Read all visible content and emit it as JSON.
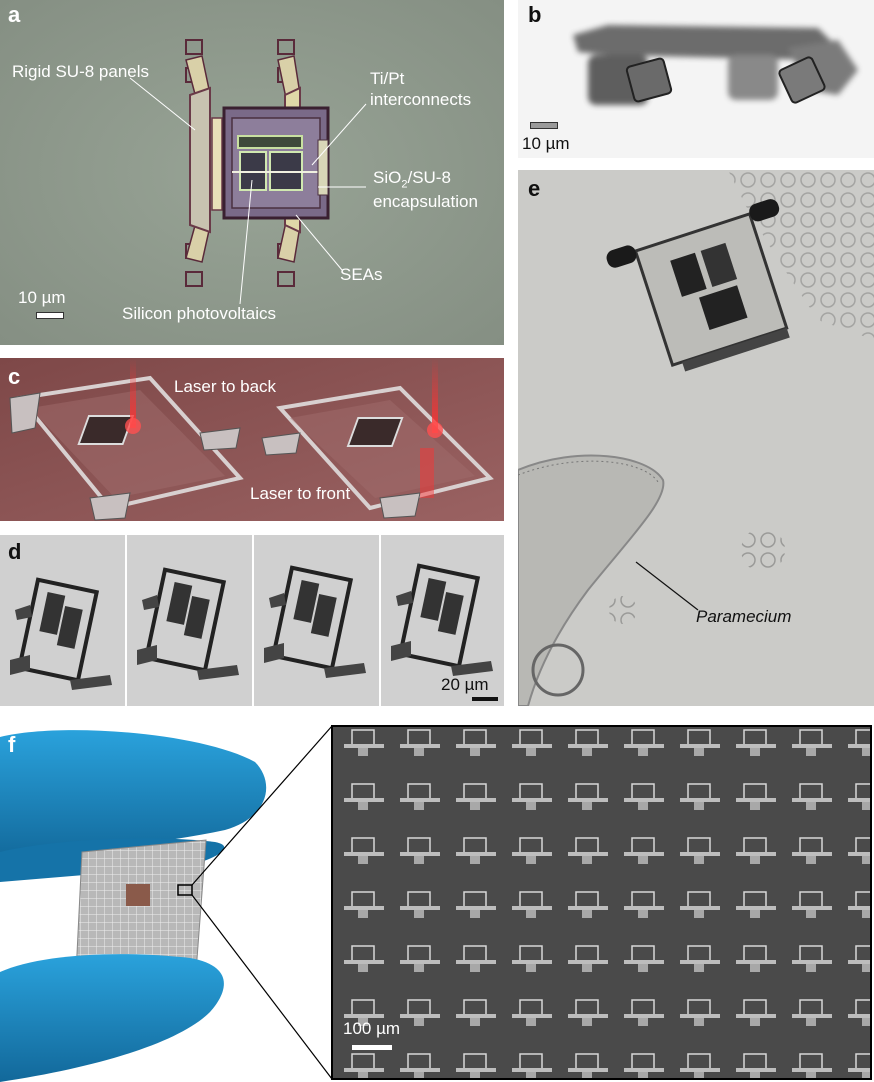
{
  "figure": {
    "panel_a": {
      "label": "a",
      "annotations": {
        "rigid_panels": "Rigid SU-8 panels",
        "interconnects_line1": "Ti/Pt",
        "interconnects_line2": "interconnects",
        "encapsulation_pre": "SiO",
        "encapsulation_sub": "2",
        "encapsulation_post": "/SU-8",
        "encapsulation_line2": "encapsulation",
        "seas": "SEAs",
        "photovoltaics": "Silicon photovoltaics"
      },
      "scale_bar": "10 µm"
    },
    "panel_b": {
      "label": "b",
      "scale_bar": "10 µm"
    },
    "panel_c": {
      "label": "c",
      "annotations": {
        "laser_back": "Laser to back",
        "laser_front": "Laser to front"
      }
    },
    "panel_d": {
      "label": "d",
      "scale_bar": "20 µm"
    },
    "panel_e": {
      "label": "e",
      "annotation": "Paramecium"
    },
    "panel_f": {
      "label": "f",
      "scale_bar": "100 µm"
    }
  },
  "colors": {
    "panel_a_bg": "#8e9a8c",
    "panel_c_bg": "#8a5252",
    "panel_e_bg": "#c9c9c6",
    "glove_blue": "#1e8fc8",
    "sem_bg": "#4a4a4a",
    "laser_red": "#ff3030"
  }
}
